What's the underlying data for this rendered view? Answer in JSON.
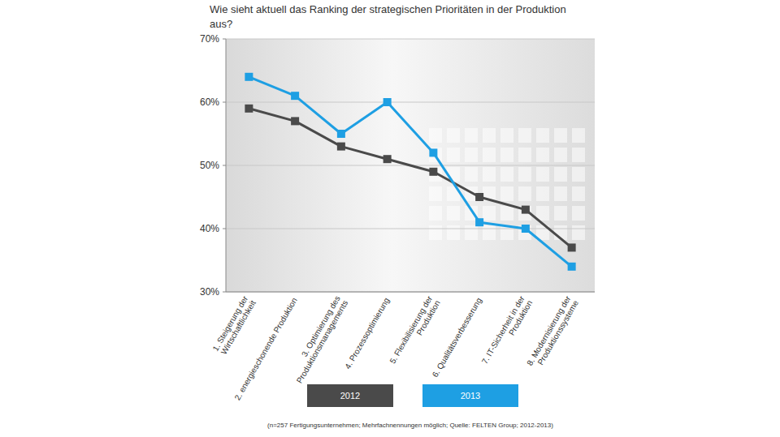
{
  "chart_data": {
    "type": "line",
    "title": "Wie sieht aktuell das Ranking der strategischen Prioritäten in der Produktion aus?",
    "categories": [
      "1. Steigerung der Wirtschaftlichkeit",
      "2. energieschonende Produktion",
      "3. Optimierung des Produktionsmanagements",
      "4. Prozessoptimierung",
      "5. Flexibilisierung der Produktion",
      "6. Qualitätsverbesserung",
      "7. IT-Sicherheit in der Produktion",
      "8. Modernisierung der Produktionssysteme"
    ],
    "series": [
      {
        "name": "2012",
        "color": "#4a4a4a",
        "values": [
          59,
          57,
          53,
          51,
          49,
          45,
          43,
          37
        ]
      },
      {
        "name": "2013",
        "color": "#1e9fe3",
        "values": [
          64,
          61,
          55,
          60,
          52,
          41,
          40,
          34
        ]
      }
    ],
    "ylim": [
      30,
      70
    ],
    "yticks": [
      {
        "value": 30,
        "label": "30%"
      },
      {
        "value": 40,
        "label": "40%"
      },
      {
        "value": 50,
        "label": "50%"
      },
      {
        "value": 60,
        "label": "60%"
      },
      {
        "value": 70,
        "label": "70%"
      }
    ],
    "grid": true,
    "legend": "bottom",
    "marker": "square",
    "note": "(n=257 Fertigungsunternehmen; Mehrfachnennungen möglich; Quelle: FELTEN Group; 2012-2013)"
  }
}
